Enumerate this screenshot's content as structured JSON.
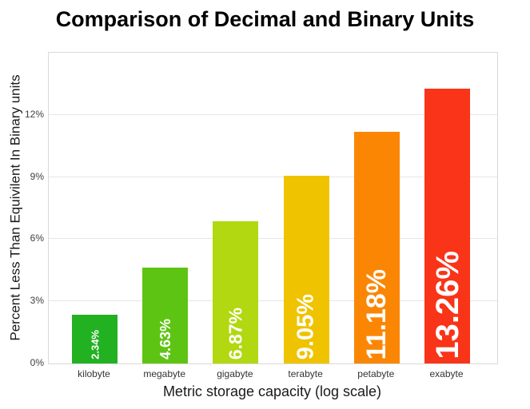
{
  "chart_data": {
    "type": "bar",
    "title": "Comparison of Decimal and Binary Units",
    "xlabel": "Metric storage capacity (log scale)",
    "ylabel": "Percent Less Than Equivilent In Binary units",
    "categories": [
      "kilobyte",
      "megabyte",
      "gigabyte",
      "terabyte",
      "petabyte",
      "exabyte"
    ],
    "values": [
      2.34,
      4.63,
      6.87,
      9.05,
      11.18,
      13.26
    ],
    "bar_labels": [
      "2.34%",
      "4.63%",
      "6.87%",
      "9.05%",
      "11.18%",
      "13.26%"
    ],
    "bar_colors": [
      "#21b121",
      "#5ec413",
      "#b1d810",
      "#efc300",
      "#fb8603",
      "#f93418"
    ],
    "bar_label_font_px": [
      13,
      18,
      23,
      29,
      34,
      40
    ],
    "yticks": [
      0,
      3,
      6,
      9,
      12
    ],
    "ytick_labels": [
      "0%",
      "3%",
      "6%",
      "9%",
      "12%"
    ],
    "ylim": [
      0,
      15
    ],
    "grid": "horizontal",
    "legend": "none"
  },
  "colors": {
    "background": "#ffffff",
    "grid": "#e6e6e6",
    "panel_border": "#d9d9d9",
    "title_text": "#000000",
    "axis_text": "#404040",
    "bar_value_text": "#ffffff"
  }
}
